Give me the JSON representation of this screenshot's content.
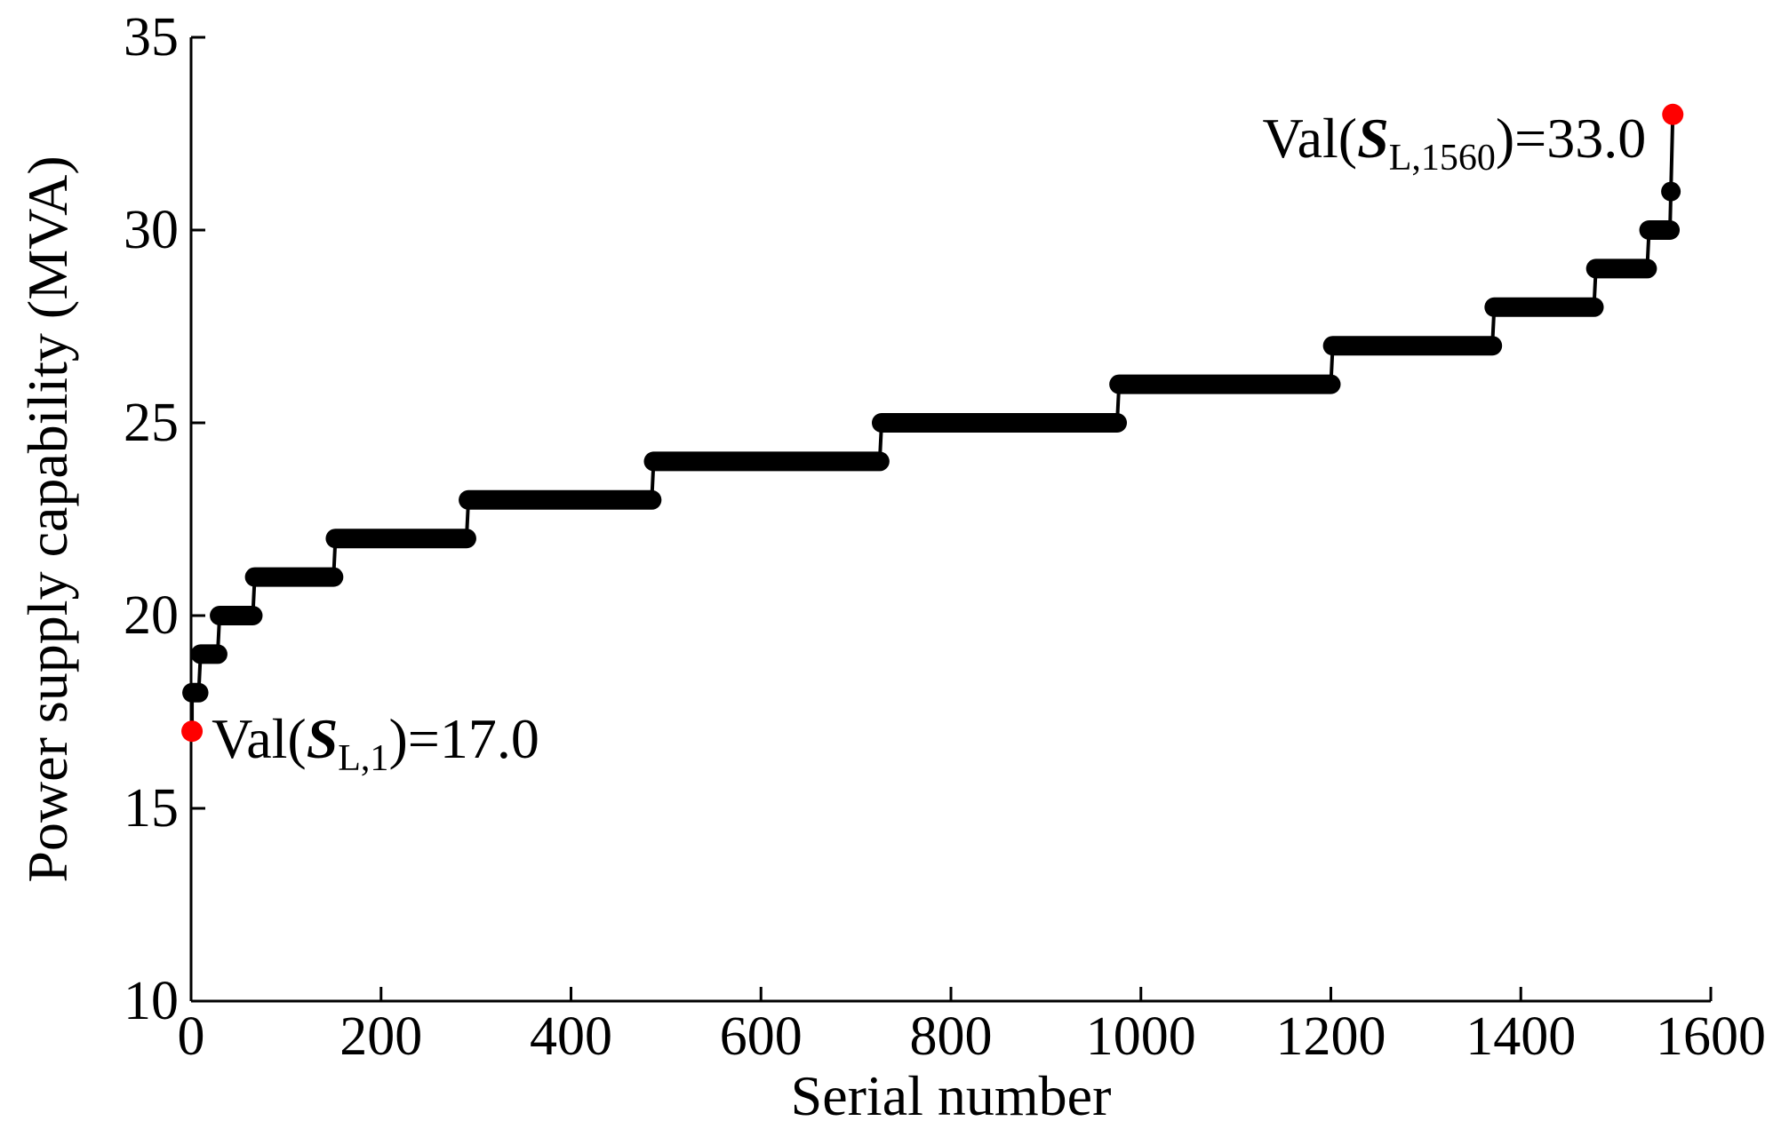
{
  "chart_data": {
    "type": "scatter",
    "xlabel": "Serial number",
    "ylabel": "Power supply capability (MVA)",
    "xlim": [
      0,
      1600
    ],
    "ylim": [
      10,
      35
    ],
    "xticks": [
      0,
      200,
      400,
      600,
      800,
      1000,
      1200,
      1400,
      1600
    ],
    "yticks": [
      10,
      15,
      20,
      25,
      30,
      35
    ],
    "xtick_labels": [
      "0",
      "200",
      "400",
      "600",
      "800",
      "1000",
      "1200",
      "1400",
      "1600"
    ],
    "ytick_labels": [
      "10",
      "15",
      "20",
      "25",
      "30",
      "35"
    ],
    "grid": false,
    "series": [
      {
        "color": "#000000",
        "steps": [
          {
            "x_start": 1,
            "x_end": 8,
            "y": 18
          },
          {
            "x_start": 10,
            "x_end": 28,
            "y": 19
          },
          {
            "x_start": 30,
            "x_end": 65,
            "y": 20
          },
          {
            "x_start": 67,
            "x_end": 150,
            "y": 21
          },
          {
            "x_start": 152,
            "x_end": 290,
            "y": 22
          },
          {
            "x_start": 292,
            "x_end": 485,
            "y": 23
          },
          {
            "x_start": 487,
            "x_end": 725,
            "y": 24
          },
          {
            "x_start": 727,
            "x_end": 975,
            "y": 25
          },
          {
            "x_start": 977,
            "x_end": 1200,
            "y": 26
          },
          {
            "x_start": 1202,
            "x_end": 1370,
            "y": 27
          },
          {
            "x_start": 1372,
            "x_end": 1477,
            "y": 28
          },
          {
            "x_start": 1479,
            "x_end": 1533,
            "y": 29
          },
          {
            "x_start": 1535,
            "x_end": 1557,
            "y": 30
          },
          {
            "x_start": 1558,
            "x_end": 1558,
            "y": 31
          }
        ]
      }
    ],
    "highlights": [
      {
        "x": 1,
        "y": 17.0,
        "color": "#ff0000",
        "label_prefix": "Val(",
        "label_symbol": "S",
        "label_sub": "L,1",
        "label_suffix": ")=17.0",
        "label_side": "right"
      },
      {
        "x": 1560,
        "y": 33.0,
        "color": "#ff0000",
        "label_prefix": "Val(",
        "label_symbol": "S",
        "label_sub": "L,1560",
        "label_suffix": ")=33.0",
        "label_side": "left"
      }
    ]
  }
}
